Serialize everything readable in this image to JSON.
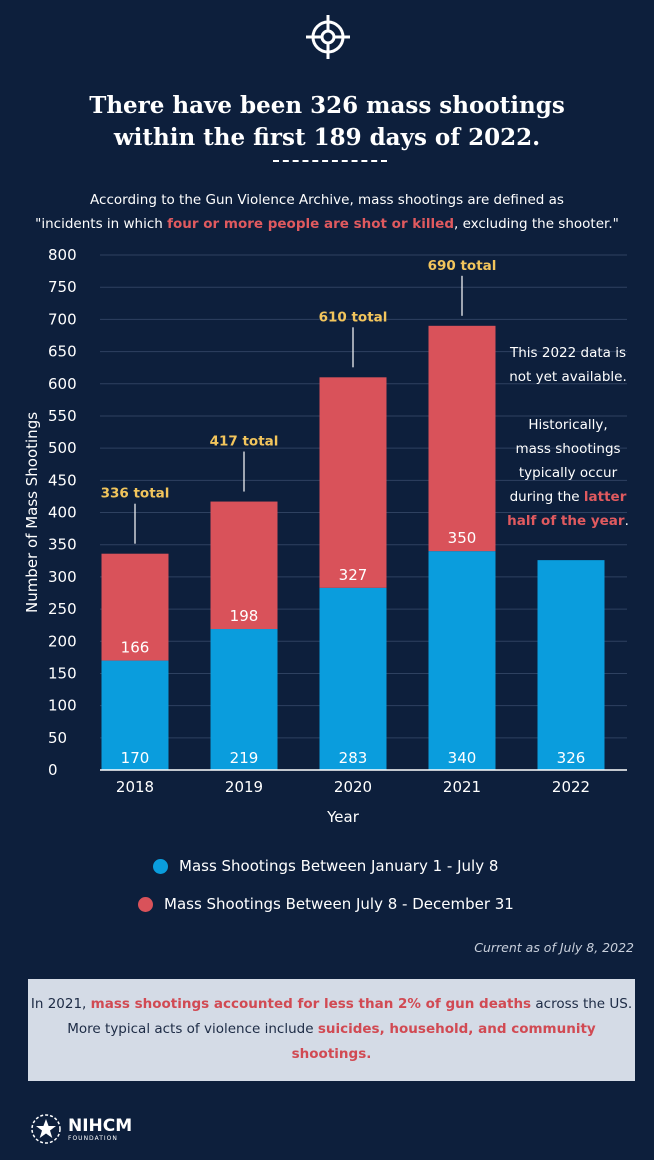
{
  "header": {
    "icon": "crosshair-icon",
    "title_line1": "There have been 326 mass shootings",
    "title_line2": "within the first 189 days of 2022.",
    "subtitle_line1": "According to the Gun Violence Archive, mass shootings are defined as",
    "subtitle_line2_pre": "\"incidents in which ",
    "subtitle_line2_hl": "four or more people are shot or killed",
    "subtitle_line2_post": ", excluding the shooter.\""
  },
  "chart_data": {
    "type": "bar",
    "stacked": true,
    "categories": [
      "2018",
      "2019",
      "2020",
      "2021",
      "2022"
    ],
    "series": [
      {
        "name": "Mass Shootings Between January 1 - July 8",
        "color": "#0a9ddd",
        "values": [
          170,
          219,
          283,
          340,
          326
        ]
      },
      {
        "name": "Mass Shootings Between July 8 - December 31",
        "color": "#d9525a",
        "values": [
          166,
          198,
          327,
          350,
          null
        ]
      }
    ],
    "totals": [
      "336 total",
      "417 total",
      "610 total",
      "690 total",
      null
    ],
    "yticks": [
      "0",
      "50",
      "100",
      "150",
      "200",
      "250",
      "300",
      "350",
      "400",
      "450",
      "500",
      "550",
      "600",
      "650",
      "700",
      "750",
      "800"
    ],
    "ylim": [
      0,
      800
    ],
    "xlabel": "Year",
    "ylabel": "Number of Mass Shootings",
    "grid": true,
    "note_lines": [
      [
        "This 2022 data is",
        ""
      ],
      [
        "not yet available.",
        ""
      ],
      [
        "",
        ""
      ],
      [
        "Historically,",
        ""
      ],
      [
        "mass shootings",
        ""
      ],
      [
        "typically occur",
        ""
      ],
      [
        "during the ",
        "latter"
      ],
      [
        "",
        "half of the year",
        "."
      ]
    ]
  },
  "legend": {
    "item1": "Mass Shootings Between January 1 - July 8",
    "item2": "Mass Shootings Between July 8 - December 31"
  },
  "current": "Current as of July 8, 2022",
  "footer": {
    "l1_pre": "In 2021, ",
    "l1_hl": "mass shootings accounted for less than 2% of gun deaths",
    "l1_post": " across the US.",
    "l2_pre": "More typical acts of violence include ",
    "l2_hl": "suicides, household, and community",
    "l3_hl": "shootings."
  },
  "logo": {
    "icon": "nihcm-star-logo",
    "name": "NIHCM",
    "sub": "FOUNDATION"
  },
  "colors": {
    "background": "#0d1f3c",
    "blue": "#0a9ddd",
    "red": "#d9525a",
    "gold": "#f2c55c"
  }
}
